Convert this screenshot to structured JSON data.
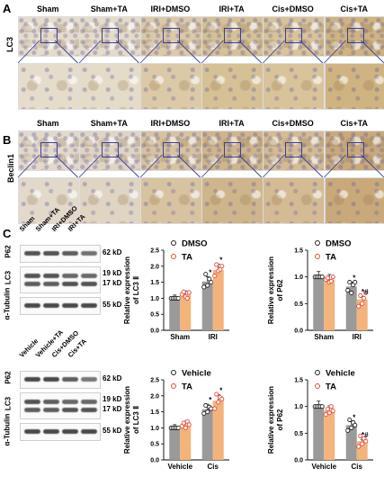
{
  "panels": {
    "A": {
      "label": "A",
      "row_label": "LC3",
      "groups": [
        "Sham",
        "Sham+TA",
        "IRI+DMSO",
        "IRI+TA",
        "Cis+DMSO",
        "Cis+TA"
      ],
      "tones": [
        "#e6dccb",
        "#e5dbc9",
        "#dcc9a7",
        "#d6c196",
        "#d9c39b",
        "#cfb381"
      ]
    },
    "B": {
      "label": "B",
      "row_label": "Beclin1",
      "groups": [
        "Sham",
        "Sham+TA",
        "IRI+DMSO",
        "IRI+TA",
        "Cis+DMSO",
        "Cis+TA"
      ],
      "tones": [
        "#e3d9cb",
        "#e0d4c3",
        "#d8c3a0",
        "#cfb58b",
        "#d4bb93",
        "#c9a97a"
      ]
    },
    "C": {
      "label": "C"
    }
  },
  "western_blots": [
    {
      "lanes": [
        "Sham",
        "Sham+TA",
        "IRI+DMSO",
        "IRI+TA"
      ],
      "rows": [
        {
          "name": "P62",
          "kd": [
            "62 kD"
          ]
        },
        {
          "name": "LC3",
          "kd": [
            "19 kD",
            "17 kD"
          ]
        },
        {
          "name": "α-Tubulin",
          "kd": [
            "55 kD"
          ]
        }
      ]
    },
    {
      "lanes": [
        "Vehicle",
        "Vehicle+TA",
        "Cis+DMSO",
        "Cis+TA"
      ],
      "rows": [
        {
          "name": "P62",
          "kd": [
            "62 kD"
          ]
        },
        {
          "name": "LC3",
          "kd": [
            "19 kD",
            "17 kD"
          ]
        },
        {
          "name": "α-Tubulin",
          "kd": [
            "55 kD"
          ]
        }
      ]
    }
  ],
  "colors": {
    "control_bar": "#9a9a9a",
    "treated_bar": "#f2b47a",
    "control_dot": "#222222",
    "treated_dot": "#e8483b",
    "roi": "#3a3f9a"
  },
  "chart_data": [
    {
      "type": "bar",
      "categories": [
        "Sham",
        "IRI"
      ],
      "series": [
        {
          "name": "DMSO",
          "values": [
            1.0,
            1.52
          ]
        },
        {
          "name": "TA",
          "values": [
            1.12,
            1.88
          ]
        }
      ],
      "points": [
        [
          [
            1.0,
            1.0,
            1.0,
            1.0,
            1.0
          ],
          [
            1.12,
            1.2,
            1.05,
            1.0,
            1.18
          ]
        ],
        [
          [
            1.35,
            1.75,
            1.4,
            1.6,
            1.5
          ],
          [
            1.7,
            2.05,
            1.85,
            1.9,
            2.0
          ]
        ]
      ],
      "annotations": [
        {
          "category": "IRI",
          "series": "DMSO",
          "text": "*"
        },
        {
          "category": "IRI",
          "series": "TA",
          "text": "*"
        }
      ],
      "ylabel": "Relative expression of LC3 Ⅱ",
      "ylim": [
        0,
        2.5
      ],
      "yticks": [
        "0.0",
        "0.5",
        "1.0",
        "1.5",
        "2.0",
        "2.5"
      ],
      "legend": "top-right"
    },
    {
      "type": "bar",
      "categories": [
        "Sham",
        "IRI"
      ],
      "series": [
        {
          "name": "DMSO",
          "values": [
            1.0,
            0.82
          ]
        },
        {
          "name": "TA",
          "values": [
            0.95,
            0.58
          ]
        }
      ],
      "points": [
        [
          [
            1.0,
            1.0,
            1.0,
            1.0,
            1.0
          ],
          [
            0.95,
            0.98,
            0.9,
            0.92,
            1.0
          ]
        ],
        [
          [
            0.75,
            0.9,
            0.7,
            0.85,
            0.9
          ],
          [
            0.45,
            0.65,
            0.5,
            0.6,
            0.7
          ]
        ]
      ],
      "annotations": [
        {
          "category": "IRI",
          "series": "DMSO",
          "text": "*"
        },
        {
          "category": "IRI",
          "series": "TA",
          "text": "*#"
        }
      ],
      "ylabel": "Relative expression of P62",
      "ylim": [
        0,
        1.5
      ],
      "yticks": [
        "0.0",
        "0.5",
        "1.0",
        "1.5"
      ],
      "legend": "top-right"
    },
    {
      "type": "bar",
      "categories": [
        "Vehicle",
        "Cis"
      ],
      "series": [
        {
          "name": "Vehicle",
          "values": [
            1.0,
            1.58
          ]
        },
        {
          "name": "TA",
          "values": [
            1.1,
            1.85
          ]
        }
      ],
      "points": [
        [
          [
            1.0,
            1.0,
            1.0,
            1.0,
            1.0
          ],
          [
            1.05,
            1.15,
            1.0,
            1.2,
            1.1
          ]
        ],
        [
          [
            1.45,
            1.7,
            1.5,
            1.65,
            1.6
          ],
          [
            1.6,
            2.05,
            1.8,
            1.95,
            1.9
          ]
        ]
      ],
      "annotations": [
        {
          "category": "Cis",
          "series": "Vehicle",
          "text": "*"
        },
        {
          "category": "Cis",
          "series": "TA",
          "text": "*"
        }
      ],
      "ylabel": "Relative expression of LC3 Ⅱ",
      "ylim": [
        0,
        2.5
      ],
      "yticks": [
        "0.0",
        "0.5",
        "1.0",
        "1.5",
        "2.0",
        "2.5"
      ],
      "legend": "top-right"
    },
    {
      "type": "bar",
      "categories": [
        "Vehicle",
        "Cis"
      ],
      "series": [
        {
          "name": "Vehicle",
          "values": [
            1.0,
            0.65
          ]
        },
        {
          "name": "TA",
          "values": [
            0.92,
            0.35
          ]
        }
      ],
      "points": [
        [
          [
            1.0,
            1.0,
            1.0,
            1.0,
            1.0
          ],
          [
            0.85,
            0.95,
            0.88,
            1.0,
            0.92
          ]
        ],
        [
          [
            0.55,
            0.75,
            0.6,
            0.7,
            0.65
          ],
          [
            0.25,
            0.45,
            0.3,
            0.4,
            0.35
          ]
        ]
      ],
      "annotations": [
        {
          "category": "Cis",
          "series": "Vehicle",
          "text": "*"
        },
        {
          "category": "Cis",
          "series": "TA",
          "text": "*#"
        }
      ],
      "ylabel": "Relative expression of P62",
      "ylim": [
        0,
        1.5
      ],
      "yticks": [
        "0.0",
        "0.5",
        "1.0",
        "1.5"
      ],
      "legend": "top-right"
    }
  ]
}
